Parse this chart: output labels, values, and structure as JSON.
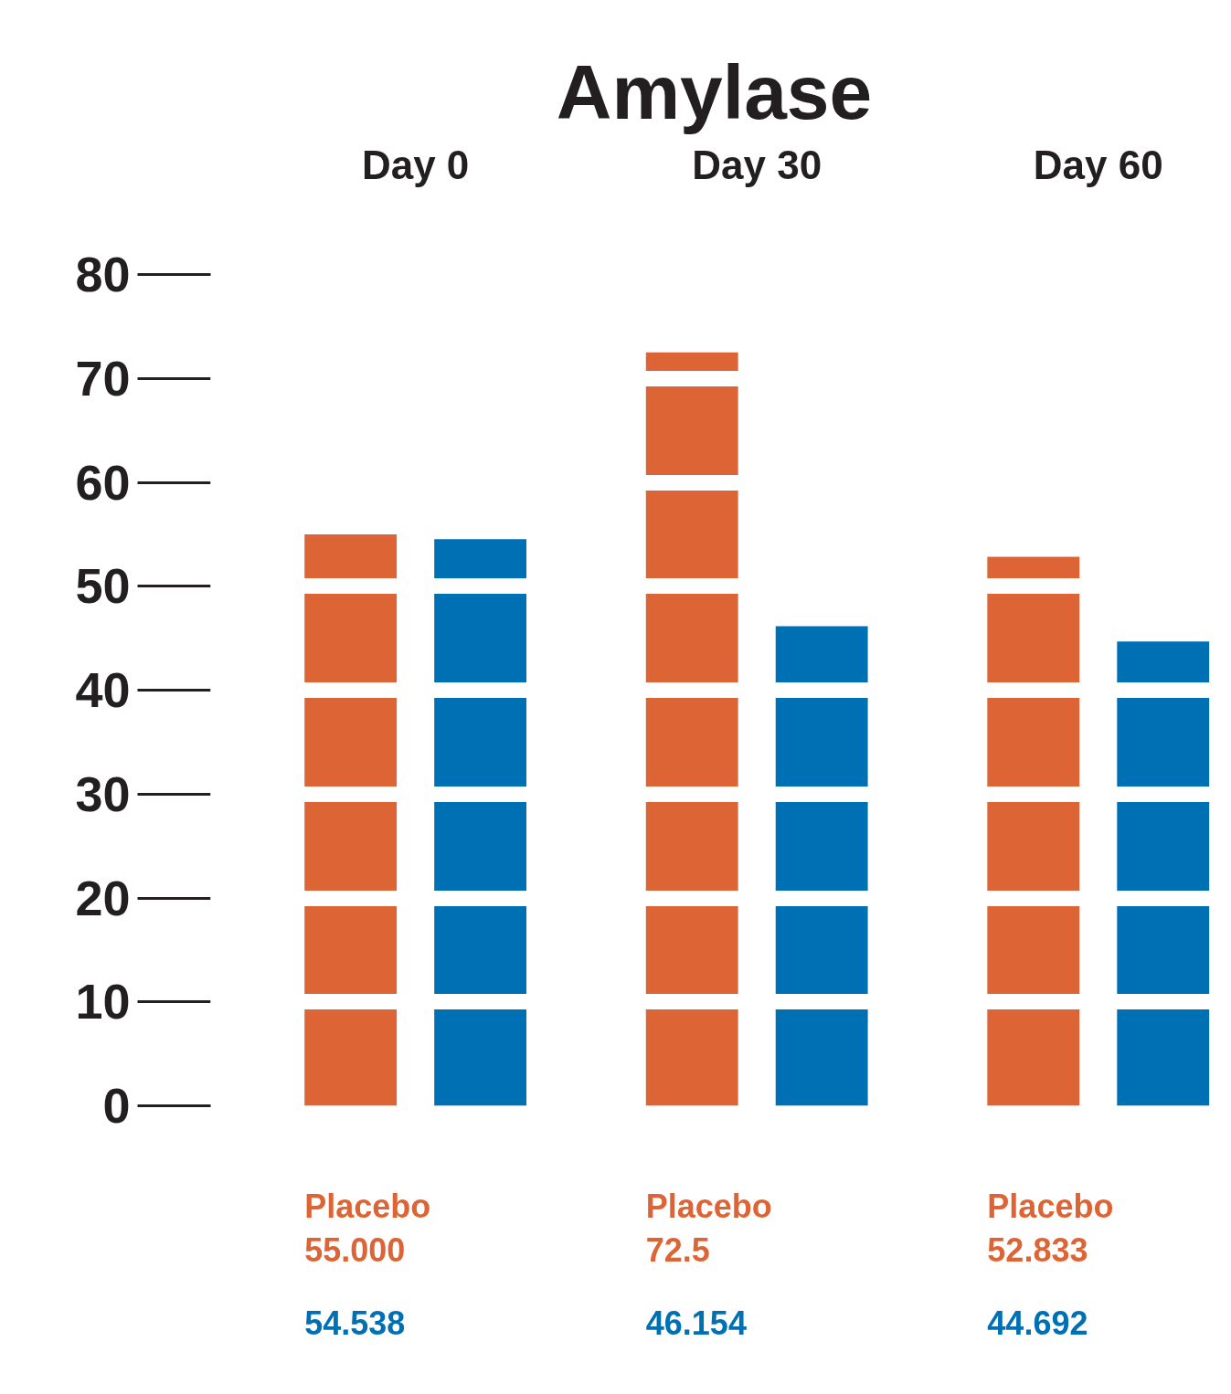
{
  "chart_data": {
    "type": "bar",
    "title": "Amylase",
    "categories": [
      "Day 0",
      "Day 30",
      "Day 60"
    ],
    "series": [
      {
        "name": "Placebo",
        "color": "#dd6435",
        "values": [
          55.0,
          72.5,
          52.833
        ],
        "value_labels": [
          "55.000",
          "72.5",
          "52.833"
        ]
      },
      {
        "color": "#0070b5",
        "values": [
          54.538,
          46.154,
          44.692
        ],
        "value_labels": [
          "54.538",
          "46.154",
          "44.692"
        ]
      }
    ],
    "ylim": [
      0,
      80
    ],
    "yticks": [
      0,
      10,
      20,
      30,
      40,
      50,
      60,
      70,
      80
    ],
    "grid": "y"
  }
}
